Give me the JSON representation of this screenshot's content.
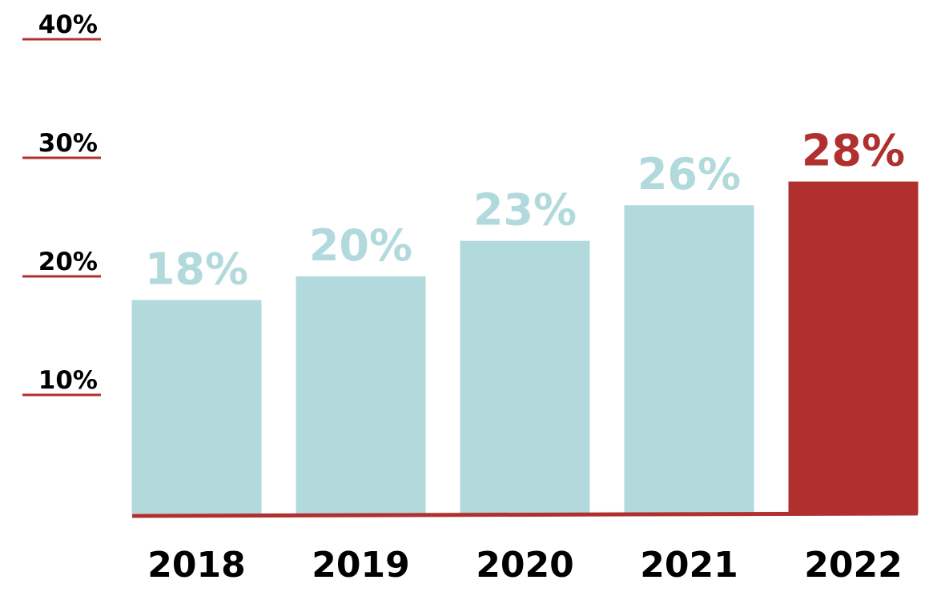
{
  "chart_data": {
    "type": "bar",
    "categories": [
      "2018",
      "2019",
      "2020",
      "2021",
      "2022"
    ],
    "values": [
      18,
      20,
      23,
      26,
      28
    ],
    "value_labels": [
      "18%",
      "20%",
      "23%",
      "26%",
      "28%"
    ],
    "colors": [
      "#b2dadc",
      "#b2dadc",
      "#b2dadc",
      "#b2dadc",
      "#b03030"
    ],
    "ylim": [
      0,
      40
    ],
    "yticks": [
      {
        "value": 10,
        "label": "10%"
      },
      {
        "value": 20,
        "label": "20%"
      },
      {
        "value": 30,
        "label": "30%"
      },
      {
        "value": 40,
        "label": "40%"
      }
    ],
    "axis_color": "#b03030"
  }
}
